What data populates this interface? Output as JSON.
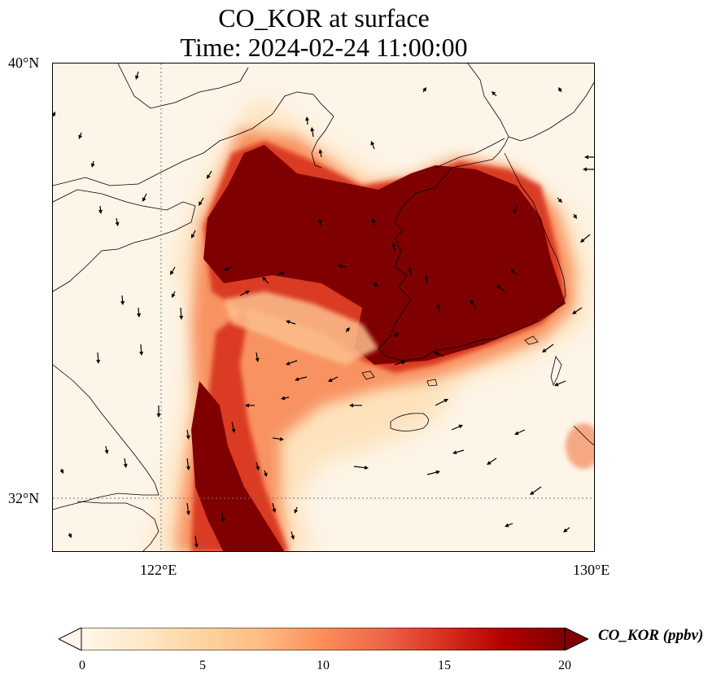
{
  "title": {
    "line1": "CO_KOR at surface",
    "line2": "Time: 2024-02-24 11:00:00"
  },
  "axes": {
    "lat_labels": [
      "40°N",
      "32°N"
    ],
    "lon_labels": [
      "122°E",
      "130°E"
    ]
  },
  "colorbar": {
    "label": "CO_KOR (ppbv)",
    "tick_labels": [
      "0",
      "5",
      "10",
      "15",
      "20"
    ],
    "colormap": "OrRd",
    "vmin": 0,
    "vmax": 20,
    "extend": "both",
    "colors": [
      "#fff7ec",
      "#fee8c8",
      "#fdd49e",
      "#fdbb84",
      "#fc8d59",
      "#ef6548",
      "#d7301f",
      "#b30000",
      "#7f0000"
    ]
  },
  "chart_data": {
    "type": "heatmap",
    "variable": "CO_KOR",
    "units": "ppbv",
    "level": "surface",
    "time": "2024-02-24 11:00:00",
    "lon_range": [
      120,
      130
    ],
    "lat_range": [
      31,
      40
    ],
    "gridlines": {
      "lon": [
        122
      ],
      "lat": [
        32
      ]
    },
    "plumes": [
      {
        "region": "Yellow Sea / Korean peninsula",
        "lon_range": [
          122.6,
          129.5
        ],
        "lat_range": [
          33.5,
          38.1
        ],
        "max_ppbv": 20
      },
      {
        "region": "southward tail west of Jeju",
        "lon_range": [
          122.4,
          124.5
        ],
        "lat_range": [
          31.0,
          34.5
        ],
        "max_ppbv": 20
      },
      {
        "region": "Kyushu (NW)",
        "lon_range": [
          129.6,
          130
        ],
        "lat_range": [
          32.6,
          33.3
        ],
        "max_ppbv": 10
      }
    ],
    "wind_vectors": "present"
  }
}
